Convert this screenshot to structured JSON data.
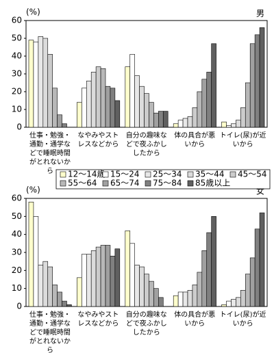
{
  "chart_data": [
    {
      "type": "bar",
      "title": "男",
      "y_unit": "(%)",
      "categories": [
        "仕事・勉強・通勤・通学などで睡眠時間がとれないから",
        "なやみやストレスなどから",
        "自分の趣味などで夜ふかししたから",
        "体の具合が悪いから",
        "トイレ(尿)が近いから"
      ],
      "series": [
        {
          "name": "12～14歳",
          "color": "#ffffcc",
          "values": [
            49,
            14,
            34,
            2,
            3
          ]
        },
        {
          "name": "15～24",
          "color": "#ffffff",
          "values": [
            48,
            22,
            41,
            4,
            1
          ]
        },
        {
          "name": "25～34",
          "color": "#e8e8e8",
          "values": [
            51,
            26,
            29,
            5,
            2
          ]
        },
        {
          "name": "35～44",
          "color": "#dcdcdc",
          "values": [
            50,
            31,
            23,
            6,
            4
          ]
        },
        {
          "name": "45～54",
          "color": "#cccccc",
          "values": [
            41,
            34,
            19,
            11,
            11
          ]
        },
        {
          "name": "55～64",
          "color": "#b8b8b8",
          "values": [
            22,
            33,
            14,
            20,
            25
          ]
        },
        {
          "name": "65～74",
          "color": "#a0a0a0",
          "values": [
            7,
            23,
            8,
            27,
            47
          ]
        },
        {
          "name": "75～84",
          "color": "#808080",
          "values": [
            2,
            22,
            9,
            31,
            52
          ]
        },
        {
          "name": "85歳以上",
          "color": "#606060",
          "values": [
            0,
            15,
            9,
            47,
            56
          ]
        }
      ],
      "ylim": [
        0,
        60
      ],
      "yticks": [
        0,
        10,
        20,
        30,
        40,
        50,
        60
      ]
    },
    {
      "type": "bar",
      "title": "女",
      "y_unit": "(%)",
      "categories": [
        "仕事・勉強・通勤・通学などで睡眠時間がとれないから",
        "なやみやストレスなどから",
        "自分の趣味などで夜ふかししたから",
        "体の具合が悪いから",
        "トイレ(尿)が近いから"
      ],
      "series": [
        {
          "name": "12～14歳",
          "color": "#ffffcc",
          "values": [
            58,
            16,
            42,
            6,
            1
          ]
        },
        {
          "name": "15～24",
          "color": "#ffffff",
          "values": [
            50,
            29,
            35,
            8,
            3
          ]
        },
        {
          "name": "25～34",
          "color": "#e8e8e8",
          "values": [
            23,
            29,
            23,
            8,
            4
          ]
        },
        {
          "name": "35～44",
          "color": "#dcdcdc",
          "values": [
            25,
            31,
            22,
            9,
            5
          ]
        },
        {
          "name": "45～54",
          "color": "#cccccc",
          "values": [
            22,
            33,
            18,
            12,
            9
          ]
        },
        {
          "name": "55～64",
          "color": "#b8b8b8",
          "values": [
            12,
            34,
            14,
            19,
            18
          ]
        },
        {
          "name": "65～74",
          "color": "#a0a0a0",
          "values": [
            8,
            34,
            10,
            31,
            27
          ]
        },
        {
          "name": "75～84",
          "color": "#808080",
          "values": [
            3,
            28,
            5,
            41,
            43
          ]
        },
        {
          "name": "85歳以上",
          "color": "#606060",
          "values": [
            1,
            32,
            0,
            50,
            52
          ]
        }
      ],
      "ylim": [
        0,
        60
      ],
      "yticks": [
        0,
        10,
        20,
        30,
        40,
        50,
        60
      ]
    }
  ]
}
